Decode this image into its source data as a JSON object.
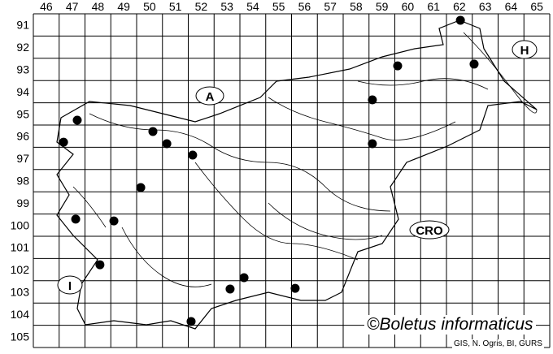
{
  "grid": {
    "columns": [
      "46",
      "47",
      "48",
      "49",
      "50",
      "51",
      "52",
      "53",
      "54",
      "55",
      "56",
      "57",
      "58",
      "59",
      "60",
      "61",
      "62",
      "63",
      "64",
      "65"
    ],
    "rows": [
      "91",
      "92",
      "93",
      "94",
      "95",
      "96",
      "97",
      "98",
      "99",
      "100",
      "101",
      "102",
      "103",
      "104",
      "105"
    ]
  },
  "country_labels": {
    "austria": "A",
    "hungary": "H",
    "croatia": "CRO",
    "italy": "I"
  },
  "records": [
    {
      "col": 47.7,
      "row": 95.78
    },
    {
      "col": 47.17,
      "row": 96.77
    },
    {
      "col": 50.63,
      "row": 96.29
    },
    {
      "col": 51.17,
      "row": 96.84
    },
    {
      "col": 52.17,
      "row": 97.35
    },
    {
      "col": 50.16,
      "row": 98.81
    },
    {
      "col": 47.64,
      "row": 100.23
    },
    {
      "col": 49.12,
      "row": 100.31
    },
    {
      "col": 48.58,
      "row": 102.28
    },
    {
      "col": 54.16,
      "row": 102.86
    },
    {
      "col": 53.62,
      "row": 103.37
    },
    {
      "col": 56.14,
      "row": 103.34
    },
    {
      "col": 52.11,
      "row": 104.83
    },
    {
      "col": 62.54,
      "row": 91.29
    },
    {
      "col": 60.11,
      "row": 93.34
    },
    {
      "col": 63.07,
      "row": 93.26
    },
    {
      "col": 59.13,
      "row": 94.87
    },
    {
      "col": 59.13,
      "row": 96.84
    }
  ],
  "credit": "©Boletus informaticus",
  "source": "GIS, N. Ogris, BI, GURS",
  "colors": {
    "ink": "#000000",
    "background": "#ffffff"
  }
}
